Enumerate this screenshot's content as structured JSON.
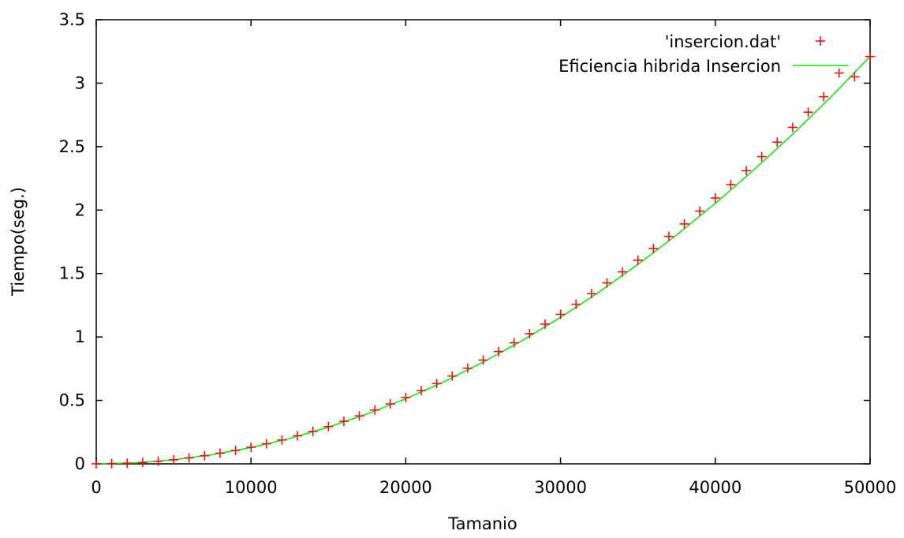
{
  "chart_data": {
    "type": "scatter",
    "xlabel": "Tamanio",
    "ylabel": "Tiempo(seg.)",
    "xlim": [
      0,
      50000
    ],
    "ylim": [
      0,
      3.5
    ],
    "xticks": [
      0,
      10000,
      20000,
      30000,
      40000,
      50000
    ],
    "xtick_labels": [
      "0",
      "10000",
      "20000",
      "30000",
      "40000",
      "50000"
    ],
    "yticks": [
      0,
      0.5,
      1,
      1.5,
      2,
      2.5,
      3,
      3.5
    ],
    "ytick_labels": [
      "0",
      "0.5",
      "1",
      "1.5",
      "2",
      "2.5",
      "3",
      "3.5"
    ],
    "grid": false,
    "legend_position": "top-right",
    "series": [
      {
        "name": "'insercion.dat'",
        "kind": "points",
        "marker": "plus",
        "color": "#ff0000",
        "x": [
          0,
          1000,
          2000,
          3000,
          4000,
          5000,
          6000,
          7000,
          8000,
          9000,
          10000,
          11000,
          12000,
          13000,
          14000,
          15000,
          16000,
          17000,
          18000,
          19000,
          20000,
          21000,
          22000,
          23000,
          24000,
          25000,
          26000,
          27000,
          28000,
          29000,
          30000,
          31000,
          32000,
          33000,
          34000,
          35000,
          36000,
          37000,
          38000,
          39000,
          40000,
          41000,
          42000,
          43000,
          44000,
          45000,
          46000,
          47000,
          48000,
          49000,
          50000
        ],
        "y": [
          0.0,
          0.002,
          0.005,
          0.011,
          0.021,
          0.032,
          0.047,
          0.064,
          0.084,
          0.106,
          0.131,
          0.158,
          0.188,
          0.221,
          0.256,
          0.294,
          0.335,
          0.378,
          0.424,
          0.472,
          0.523,
          0.577,
          0.633,
          0.692,
          0.754,
          0.818,
          0.885,
          0.954,
          1.026,
          1.101,
          1.178,
          1.258,
          1.341,
          1.426,
          1.513,
          1.605,
          1.697,
          1.793,
          1.891,
          1.992,
          2.095,
          2.201,
          2.31,
          2.421,
          2.535,
          2.652,
          2.771,
          2.893,
          3.08,
          3.05,
          3.21
        ]
      },
      {
        "name": "Eficiencia hibrida Insercion",
        "kind": "line",
        "color": "#00ee00",
        "x": [
          0,
          2500,
          5000,
          7500,
          10000,
          12500,
          15000,
          17500,
          20000,
          22500,
          25000,
          27500,
          30000,
          32500,
          35000,
          37500,
          40000,
          42500,
          45000,
          47500,
          50000
        ],
        "y": [
          0.0,
          0.008,
          0.032,
          0.072,
          0.128,
          0.2,
          0.289,
          0.393,
          0.513,
          0.649,
          0.802,
          0.97,
          1.155,
          1.355,
          1.572,
          1.804,
          2.053,
          2.318,
          2.598,
          2.895,
          3.21
        ]
      }
    ]
  }
}
